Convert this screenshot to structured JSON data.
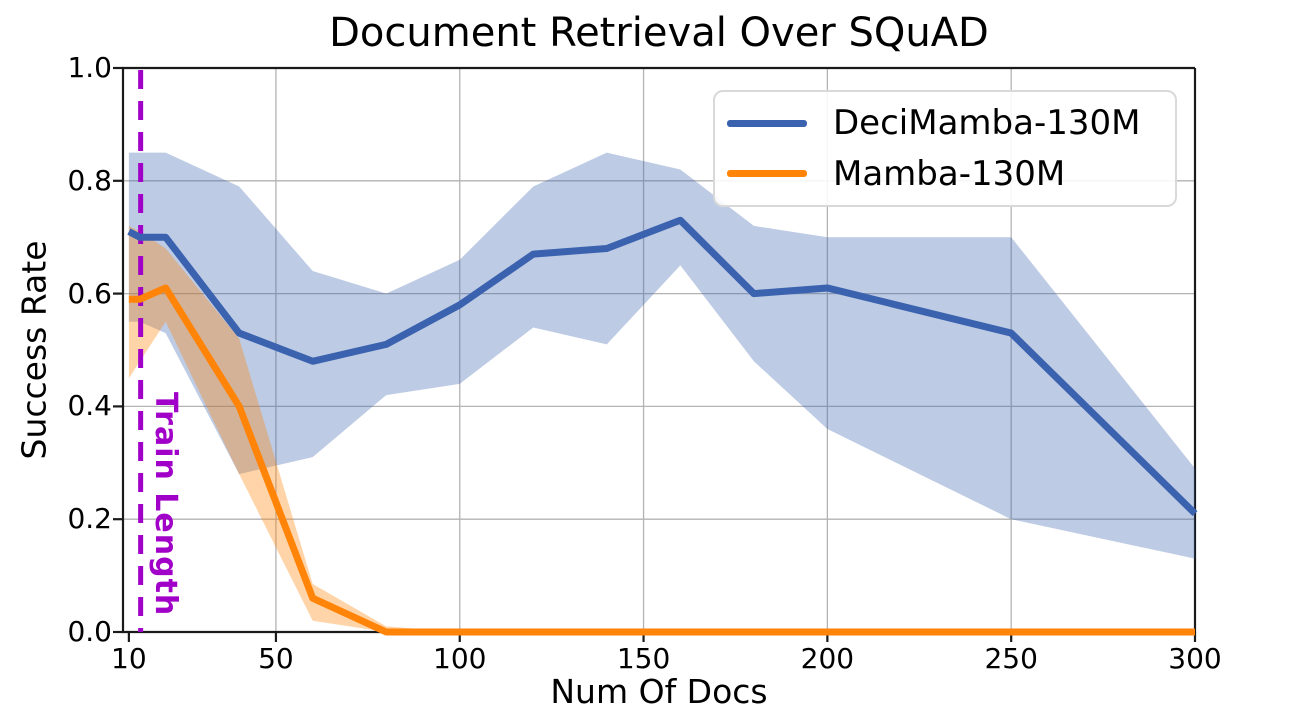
{
  "title": "Document Retrieval Over SQuAD",
  "x_axis": {
    "label": "Num Of Docs",
    "ticks": [
      10,
      50,
      100,
      150,
      200,
      250,
      300
    ]
  },
  "y_axis": {
    "label": "Success Rate",
    "ticks": [
      0.0,
      0.2,
      0.4,
      0.6,
      0.8,
      1.0
    ]
  },
  "legend": [
    {
      "label": "DeciMamba-130M",
      "color": "#3a62ae"
    },
    {
      "label": "Mamba-130M",
      "color": "#ff8408"
    }
  ],
  "annotation": {
    "label": "Train Length",
    "x": 13.2,
    "color": "#a000c8"
  },
  "colors": {
    "grid": "#b3b3b3",
    "spine": "#1a1a1a",
    "blue_line": "#3a62ae",
    "orange_line": "#ff8408",
    "vline": "#a000c8"
  },
  "chart_data": {
    "type": "line",
    "title": "Document Retrieval Over SQuAD",
    "xlabel": "Num Of Docs",
    "ylabel": "Success Rate",
    "xlim": [
      8.4,
      300
    ],
    "ylim": [
      0,
      1
    ],
    "grid": true,
    "legend_position": "upper right",
    "x": [
      10,
      13,
      20,
      40,
      60,
      80,
      100,
      120,
      140,
      160,
      180,
      200,
      250,
      300
    ],
    "series": [
      {
        "name": "DeciMamba-130M",
        "color": "#3a62ae",
        "band_opacity": 0.33,
        "values": [
          0.71,
          0.7,
          0.7,
          0.53,
          0.48,
          0.51,
          0.58,
          0.67,
          0.68,
          0.73,
          0.6,
          0.61,
          0.53,
          0.21
        ],
        "band_upper": [
          0.85,
          0.85,
          0.85,
          0.79,
          0.64,
          0.6,
          0.66,
          0.79,
          0.85,
          0.82,
          0.72,
          0.7,
          0.7,
          0.29
        ],
        "band_lower": [
          0.55,
          0.55,
          0.53,
          0.28,
          0.31,
          0.42,
          0.44,
          0.54,
          0.51,
          0.65,
          0.48,
          0.36,
          0.2,
          0.13
        ]
      },
      {
        "name": "Mamba-130M",
        "color": "#ff8408",
        "band_opacity": 0.35,
        "values": [
          0.59,
          0.59,
          0.61,
          0.4,
          0.06,
          0.0,
          0.0,
          0.0,
          0.0,
          0.0,
          0.0,
          0.0,
          0.0,
          0.0
        ],
        "band_upper": [
          0.72,
          0.71,
          0.68,
          0.52,
          0.085,
          0.01,
          0.0,
          0.0,
          0.0,
          0.0,
          0.0,
          0.0,
          0.0,
          0.0
        ],
        "band_lower": [
          0.45,
          0.48,
          0.55,
          0.28,
          0.02,
          0.0,
          0.0,
          0.0,
          0.0,
          0.0,
          0.0,
          0.0,
          0.0,
          0.0
        ]
      }
    ],
    "vline": {
      "x": 13.2,
      "label": "Train Length",
      "style": "dashed",
      "color": "#a000c8"
    }
  }
}
